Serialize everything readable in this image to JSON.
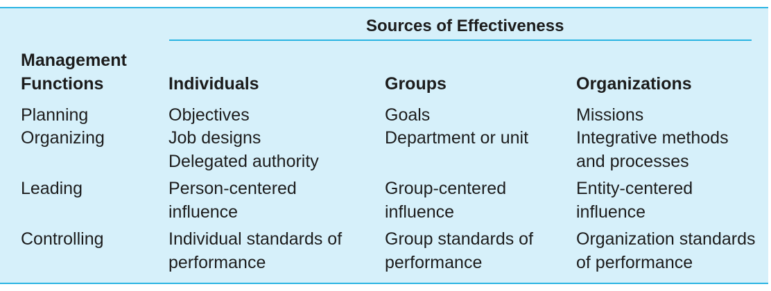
{
  "title": "Sources of Effectiveness",
  "headers": {
    "functions_line1": "Management",
    "functions_line2": "Functions",
    "individuals": "Individuals",
    "groups": "Groups",
    "organizations": "Organizations"
  },
  "rows": {
    "planning": {
      "function": "Planning",
      "individuals": [
        "Objectives"
      ],
      "groups": [
        "Goals"
      ],
      "organizations": [
        "Missions"
      ]
    },
    "organizing": {
      "function": "Organizing",
      "individuals": [
        "Job designs",
        "Delegated authority"
      ],
      "groups": [
        "Department or unit"
      ],
      "organizations": [
        "Integrative methods",
        "and processes"
      ]
    },
    "leading": {
      "function": "Leading",
      "individuals": [
        "Person-centered",
        "influence"
      ],
      "groups": [
        "Group-centered",
        "influence"
      ],
      "organizations": [
        "Entity-centered",
        "influence"
      ]
    },
    "controlling": {
      "function": "Controlling",
      "individuals": [
        "Individual standards of",
        "performance"
      ],
      "groups": [
        "Group standards of",
        "performance"
      ],
      "organizations": [
        "Organization standards",
        "of performance"
      ]
    }
  },
  "colors": {
    "panel_background": "#d6f0fa",
    "rule": "#29b4e2",
    "text": "#1c1c1c"
  }
}
